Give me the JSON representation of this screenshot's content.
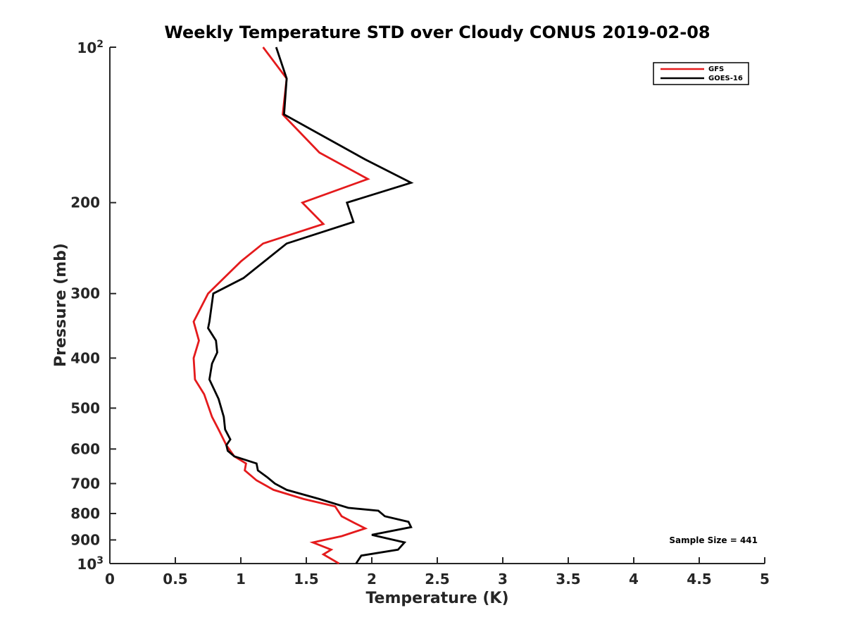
{
  "chart_data": {
    "type": "line",
    "title": "Weekly Temperature STD over Cloudy CONUS 2019-02-08",
    "xlabel": "Temperature (K)",
    "ylabel": "Pressure (mb)",
    "xlim": [
      0,
      5
    ],
    "ylim": [
      100,
      1000
    ],
    "y_scale": "log",
    "y_reversed": true,
    "grid": false,
    "legend_position": "top-right",
    "x_ticks": [
      "0",
      "0.5",
      "1",
      "1.5",
      "2",
      "2.5",
      "3",
      "3.5",
      "4",
      "4.5",
      "5"
    ],
    "y_ticks": [
      {
        "value": 100,
        "base": "10",
        "exp": "2"
      },
      {
        "value": 200,
        "label": "200"
      },
      {
        "value": 300,
        "label": "300"
      },
      {
        "value": 400,
        "label": "400"
      },
      {
        "value": 500,
        "label": "500"
      },
      {
        "value": 600,
        "label": "600"
      },
      {
        "value": 700,
        "label": "700"
      },
      {
        "value": 800,
        "label": "800"
      },
      {
        "value": 900,
        "label": "900"
      },
      {
        "value": 1000,
        "base": "10",
        "exp": "3"
      }
    ],
    "annotation": "Sample Size = 441",
    "series": [
      {
        "name": "GFS",
        "color": "#e41a1c",
        "points": [
          [
            1.17,
            100
          ],
          [
            1.35,
            115
          ],
          [
            1.32,
            135
          ],
          [
            1.6,
            160
          ],
          [
            1.97,
            180
          ],
          [
            1.47,
            200
          ],
          [
            1.63,
            220
          ],
          [
            1.17,
            240
          ],
          [
            1.0,
            260
          ],
          [
            0.75,
            300
          ],
          [
            0.64,
            340
          ],
          [
            0.68,
            370
          ],
          [
            0.64,
            400
          ],
          [
            0.65,
            440
          ],
          [
            0.72,
            470
          ],
          [
            0.78,
            520
          ],
          [
            0.83,
            550
          ],
          [
            0.89,
            590
          ],
          [
            0.95,
            620
          ],
          [
            1.04,
            640
          ],
          [
            1.03,
            660
          ],
          [
            1.12,
            690
          ],
          [
            1.25,
            720
          ],
          [
            1.48,
            750
          ],
          [
            1.72,
            775
          ],
          [
            1.77,
            810
          ],
          [
            1.87,
            835
          ],
          [
            1.95,
            855
          ],
          [
            1.77,
            885
          ],
          [
            1.55,
            910
          ],
          [
            1.69,
            940
          ],
          [
            1.63,
            960
          ],
          [
            1.75,
            1000
          ]
        ]
      },
      {
        "name": "GOES-16",
        "color": "#000000",
        "points": [
          [
            1.27,
            100
          ],
          [
            1.35,
            115
          ],
          [
            1.33,
            135
          ],
          [
            1.95,
            165
          ],
          [
            2.3,
            183
          ],
          [
            1.81,
            200
          ],
          [
            1.86,
            218
          ],
          [
            1.35,
            240
          ],
          [
            1.02,
            280
          ],
          [
            0.79,
            300
          ],
          [
            0.76,
            340
          ],
          [
            0.75,
            350
          ],
          [
            0.81,
            370
          ],
          [
            0.82,
            390
          ],
          [
            0.78,
            410
          ],
          [
            0.76,
            440
          ],
          [
            0.83,
            480
          ],
          [
            0.87,
            520
          ],
          [
            0.88,
            550
          ],
          [
            0.92,
            575
          ],
          [
            0.89,
            590
          ],
          [
            0.9,
            605
          ],
          [
            0.95,
            620
          ],
          [
            1.12,
            640
          ],
          [
            1.13,
            660
          ],
          [
            1.2,
            680
          ],
          [
            1.26,
            700
          ],
          [
            1.35,
            720
          ],
          [
            1.6,
            750
          ],
          [
            1.82,
            780
          ],
          [
            2.05,
            790
          ],
          [
            2.1,
            810
          ],
          [
            2.28,
            830
          ],
          [
            2.3,
            850
          ],
          [
            2.0,
            880
          ],
          [
            2.25,
            910
          ],
          [
            2.2,
            940
          ],
          [
            1.92,
            965
          ],
          [
            1.88,
            1000
          ]
        ]
      }
    ]
  }
}
